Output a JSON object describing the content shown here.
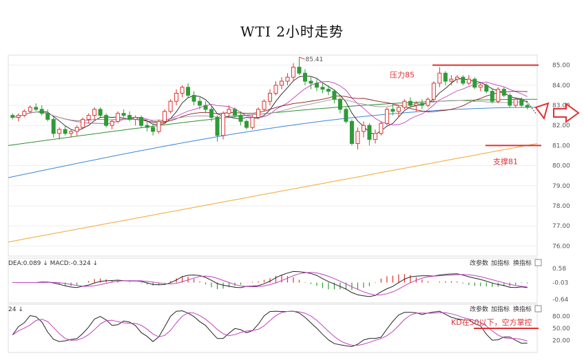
{
  "title": "WTI  2小时走势",
  "colors": {
    "up": "#e0312b",
    "down": "#2e9b37",
    "ma_blue": "#3d86d6",
    "ma_orange": "#f0a830",
    "ma_green": "#2f8f2f",
    "ma_darkred": "#8b1a1a",
    "ma_magenta": "#c040c0",
    "ma_black": "#222222",
    "ma_gray": "#999999",
    "annotation": "#e03030"
  },
  "toolbar": {
    "change_params": "改参数",
    "add_indicator": "加指标",
    "swap_indicator": "换指标",
    "close": "×"
  },
  "chart_data": [
    {
      "type": "candlestick",
      "ylim": [
        75.5,
        85.5
      ],
      "yticks": [
        "85.00",
        "84.00",
        "83.00",
        "82.00",
        "81.00",
        "80.00",
        "79.00",
        "78.00",
        "77.00",
        "76.00"
      ],
      "ytick_values": [
        85,
        84,
        83,
        82,
        81,
        80,
        79,
        78,
        77,
        76
      ],
      "peak_label": "85.41",
      "annotations": [
        {
          "text": "压力85",
          "level": 85.0
        },
        {
          "text": "支撑81",
          "level": 81.0
        }
      ],
      "candles": [
        [
          82.5,
          82.6,
          82.3,
          82.4
        ],
        [
          82.4,
          82.6,
          82.2,
          82.5
        ],
        [
          82.5,
          82.8,
          82.4,
          82.7
        ],
        [
          82.7,
          83.0,
          82.6,
          82.9
        ],
        [
          82.9,
          83.1,
          82.7,
          82.8
        ],
        [
          82.8,
          83.0,
          82.5,
          82.6
        ],
        [
          82.6,
          82.8,
          82.2,
          82.3
        ],
        [
          82.3,
          82.4,
          81.4,
          81.6
        ],
        [
          81.6,
          81.9,
          81.3,
          81.8
        ],
        [
          81.8,
          82.0,
          81.5,
          81.6
        ],
        [
          81.6,
          81.8,
          81.4,
          81.7
        ],
        [
          81.7,
          82.0,
          81.5,
          81.9
        ],
        [
          81.9,
          82.4,
          81.8,
          82.3
        ],
        [
          82.3,
          82.6,
          82.1,
          82.5
        ],
        [
          82.5,
          82.9,
          82.3,
          82.8
        ],
        [
          82.8,
          82.9,
          82.4,
          82.5
        ],
        [
          82.5,
          82.6,
          81.9,
          82.0
        ],
        [
          82.0,
          82.3,
          81.8,
          82.2
        ],
        [
          82.2,
          82.7,
          82.1,
          82.6
        ],
        [
          82.6,
          82.8,
          82.4,
          82.5
        ],
        [
          82.5,
          82.7,
          82.2,
          82.3
        ],
        [
          82.3,
          82.5,
          82.0,
          82.4
        ],
        [
          82.4,
          82.5,
          81.9,
          82.0
        ],
        [
          82.0,
          82.2,
          81.7,
          81.9
        ],
        [
          81.9,
          82.1,
          81.5,
          81.7
        ],
        [
          81.7,
          82.3,
          81.6,
          82.2
        ],
        [
          82.2,
          82.8,
          82.1,
          82.7
        ],
        [
          82.7,
          83.3,
          82.6,
          83.2
        ],
        [
          83.2,
          83.8,
          83.0,
          83.6
        ],
        [
          83.6,
          84.0,
          83.4,
          83.9
        ],
        [
          83.9,
          84.1,
          83.4,
          83.5
        ],
        [
          83.5,
          83.7,
          83.0,
          83.2
        ],
        [
          83.2,
          83.4,
          82.8,
          83.0
        ],
        [
          83.0,
          83.2,
          82.6,
          82.8
        ],
        [
          82.8,
          83.0,
          82.2,
          82.4
        ],
        [
          82.4,
          82.5,
          81.2,
          81.5
        ],
        [
          81.5,
          82.7,
          81.3,
          82.6
        ],
        [
          82.6,
          83.0,
          82.4,
          82.8
        ],
        [
          82.8,
          82.9,
          82.4,
          82.5
        ],
        [
          82.5,
          82.7,
          82.0,
          82.2
        ],
        [
          82.2,
          82.3,
          81.8,
          81.9
        ],
        [
          81.9,
          82.5,
          81.8,
          82.4
        ],
        [
          82.4,
          82.9,
          82.3,
          82.8
        ],
        [
          82.8,
          83.3,
          82.7,
          83.2
        ],
        [
          83.2,
          83.8,
          83.0,
          83.6
        ],
        [
          83.6,
          84.2,
          83.5,
          84.0
        ],
        [
          84.0,
          84.4,
          83.8,
          84.2
        ],
        [
          84.2,
          84.6,
          84.0,
          84.4
        ],
        [
          84.4,
          85.1,
          84.2,
          84.9
        ],
        [
          84.9,
          85.4,
          84.5,
          84.6
        ],
        [
          84.6,
          84.8,
          84.0,
          84.2
        ],
        [
          84.2,
          84.4,
          83.8,
          84.1
        ],
        [
          84.1,
          84.3,
          83.7,
          83.9
        ],
        [
          83.9,
          84.1,
          83.6,
          83.8
        ],
        [
          83.8,
          84.0,
          83.5,
          83.7
        ],
        [
          83.7,
          83.8,
          83.1,
          83.3
        ],
        [
          83.3,
          83.4,
          82.6,
          82.8
        ],
        [
          82.8,
          82.9,
          82.1,
          82.2
        ],
        [
          82.2,
          82.3,
          81.0,
          81.1
        ],
        [
          81.1,
          81.9,
          80.8,
          81.7
        ],
        [
          81.7,
          82.2,
          81.4,
          82.0
        ],
        [
          82.0,
          82.1,
          81.0,
          81.3
        ],
        [
          81.3,
          81.8,
          81.1,
          81.6
        ],
        [
          81.6,
          82.2,
          81.5,
          82.1
        ],
        [
          82.1,
          82.9,
          82.0,
          82.8
        ],
        [
          82.8,
          83.1,
          82.5,
          82.7
        ],
        [
          82.7,
          83.0,
          82.4,
          82.9
        ],
        [
          82.9,
          83.3,
          82.8,
          83.2
        ],
        [
          83.2,
          83.4,
          82.9,
          83.0
        ],
        [
          83.0,
          83.2,
          82.7,
          83.1
        ],
        [
          83.1,
          83.3,
          82.8,
          83.0
        ],
        [
          83.0,
          83.4,
          82.9,
          83.3
        ],
        [
          83.3,
          84.2,
          83.2,
          84.1
        ],
        [
          84.1,
          84.9,
          83.9,
          84.6
        ],
        [
          84.6,
          84.7,
          84.0,
          84.2
        ],
        [
          84.2,
          84.5,
          84.0,
          84.3
        ],
        [
          84.3,
          84.5,
          84.1,
          84.4
        ],
        [
          84.4,
          84.5,
          84.0,
          84.1
        ],
        [
          84.1,
          84.5,
          84.0,
          84.3
        ],
        [
          84.3,
          84.4,
          83.8,
          83.9
        ],
        [
          83.9,
          84.1,
          83.7,
          84.0
        ],
        [
          84.0,
          84.1,
          83.6,
          83.7
        ],
        [
          83.7,
          83.8,
          83.1,
          83.2
        ],
        [
          83.2,
          83.9,
          83.1,
          83.8
        ],
        [
          83.8,
          83.9,
          83.4,
          83.5
        ],
        [
          83.5,
          83.6,
          82.9,
          83.0
        ],
        [
          83.0,
          83.4,
          82.9,
          83.3
        ],
        [
          83.3,
          83.4,
          82.9,
          83.0
        ],
        [
          83.0,
          83.1,
          82.8,
          82.9
        ]
      ],
      "ma_lines": [
        {
          "color": "#3d86d6",
          "start": 79.4,
          "end": 82.9,
          "shape": "rising_flat"
        },
        {
          "color": "#f0a830",
          "start": 76.2,
          "end": 81.1,
          "shape": "rising"
        },
        {
          "color": "#2f8f2f",
          "start": 81.0,
          "end": 83.3,
          "shape": "rising_flat"
        }
      ],
      "macd_label": "DEA:0.089 ↓ MACD:-0.324 ↓",
      "macd_yticks": [
        "0.58",
        "-0.03",
        "-0.64"
      ],
      "kd_label": "24 ↓",
      "kd_yticks": [
        "80.00",
        "50.00",
        "20.00"
      ],
      "kd_annotation": "KD在50以下，空方掌控"
    }
  ]
}
